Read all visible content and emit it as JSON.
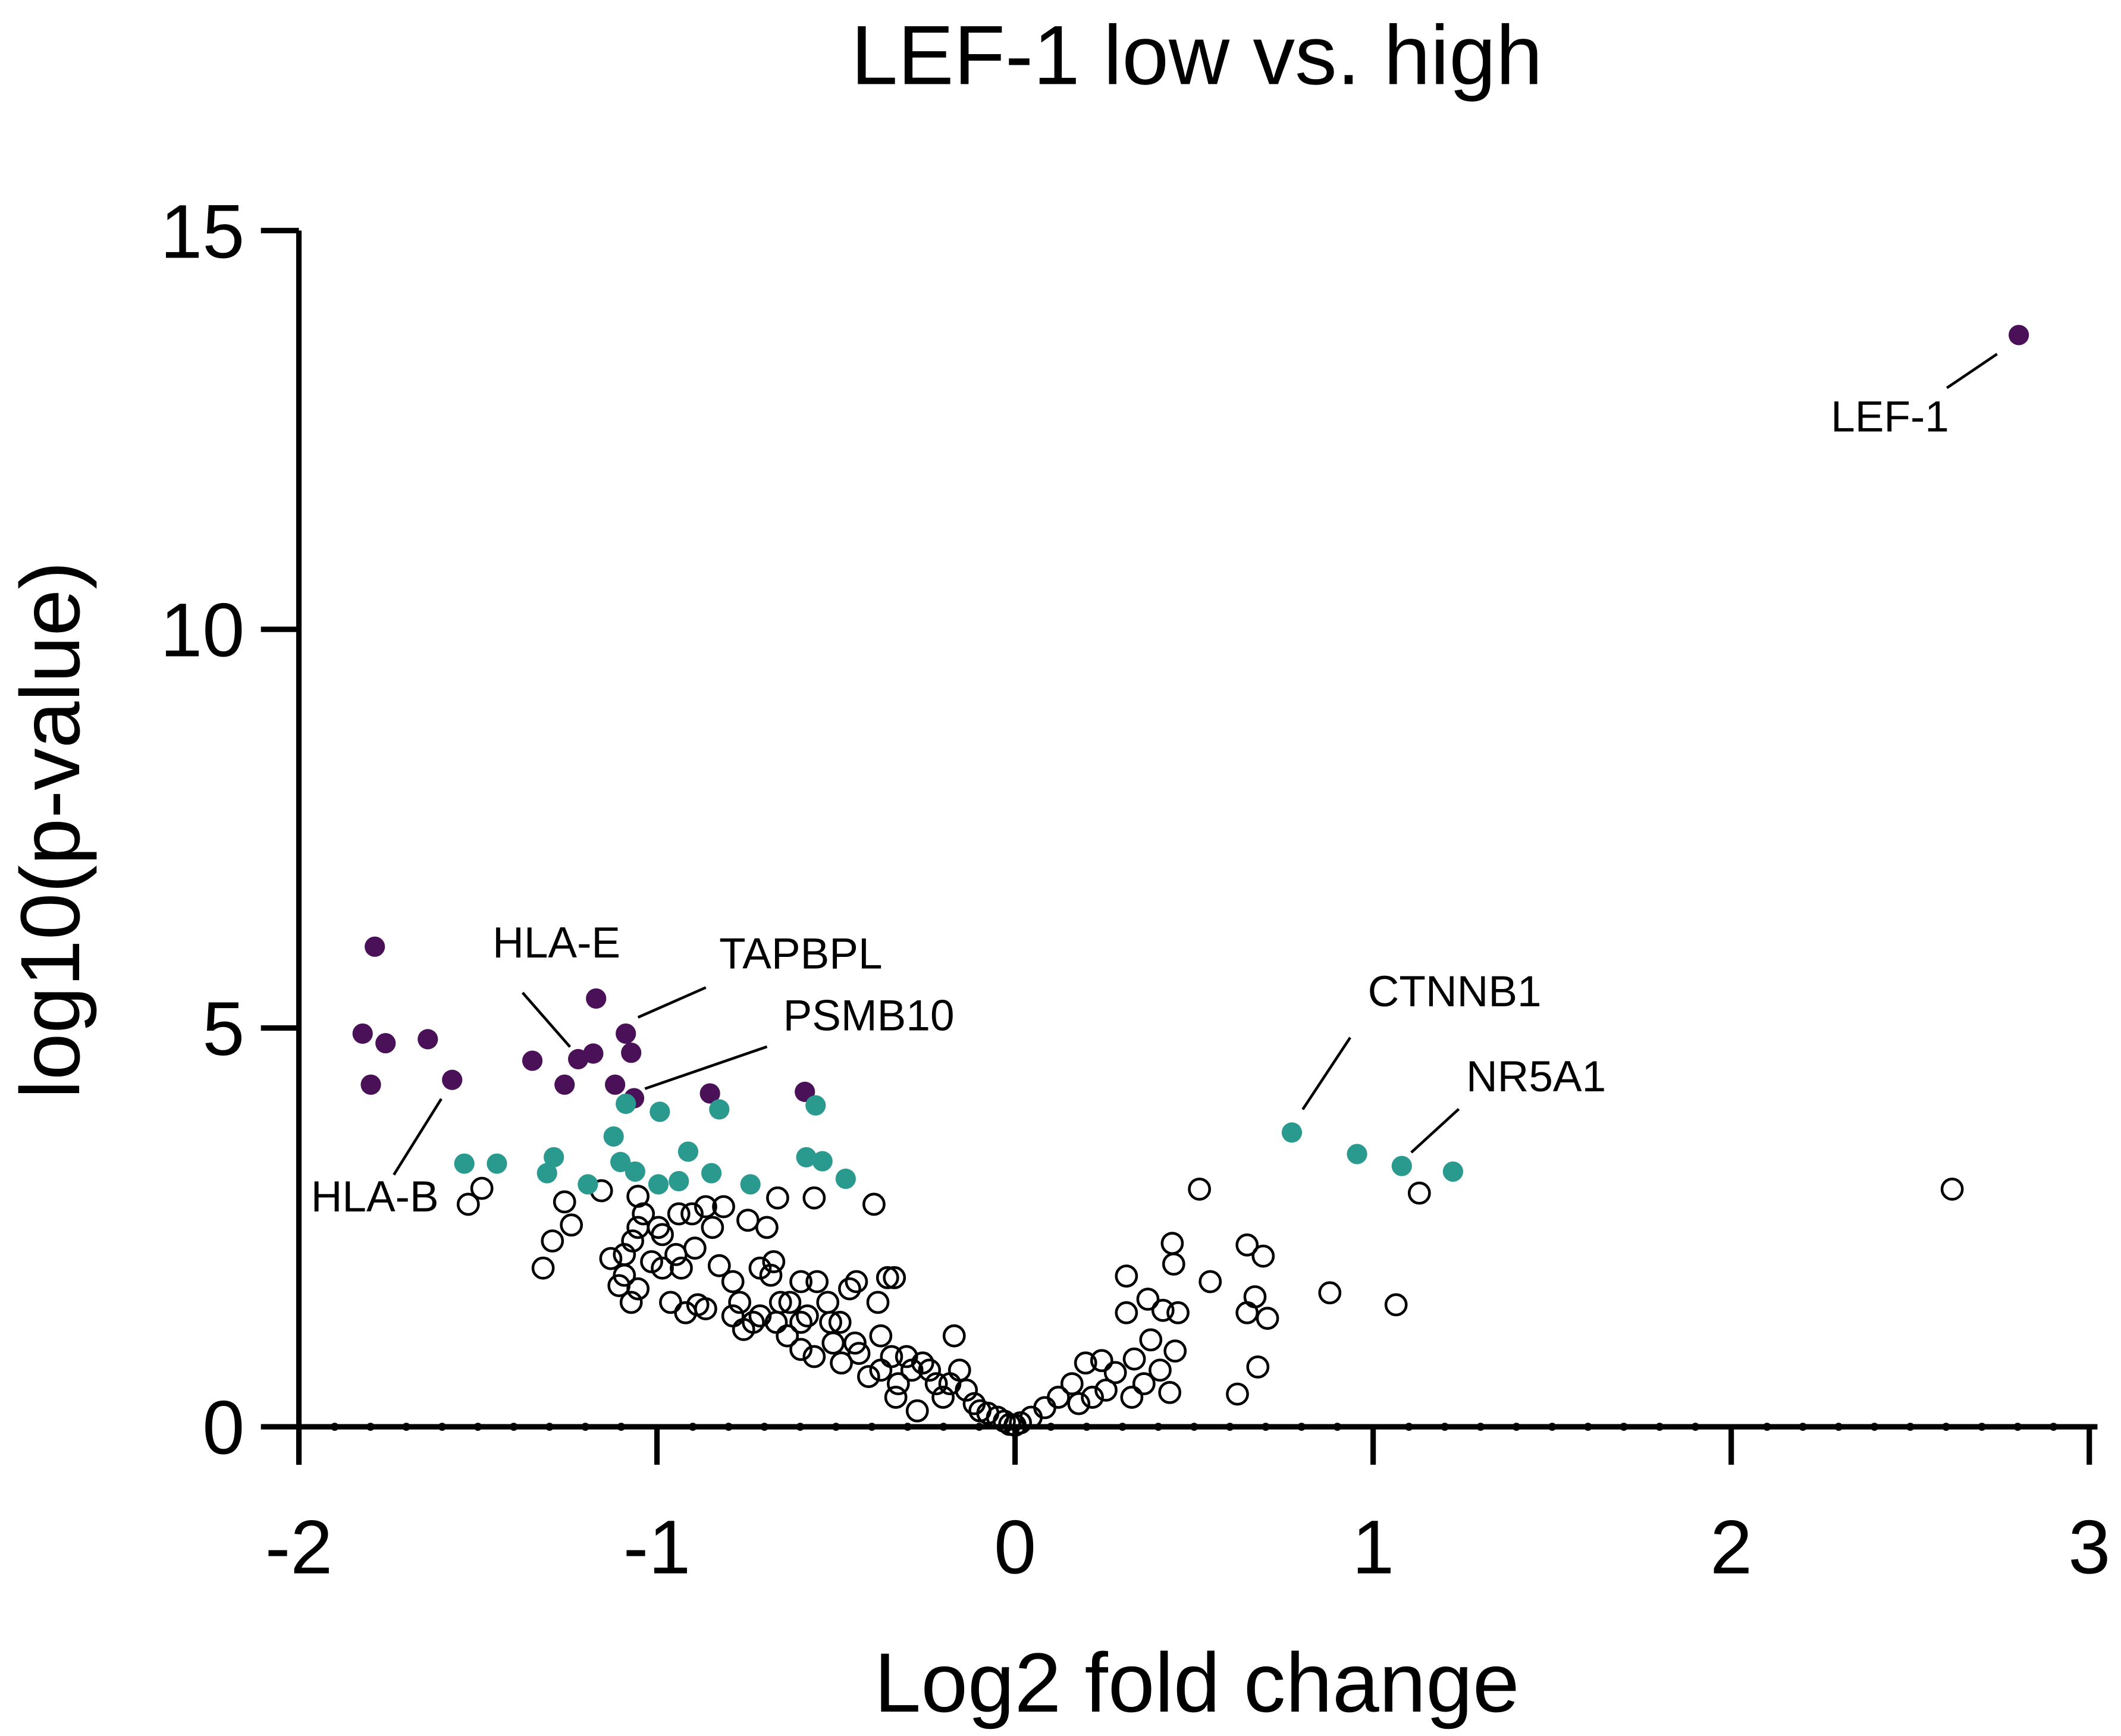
{
  "chart_data": {
    "type": "scatter",
    "title": "LEF-1 low vs. high",
    "xlabel": "Log2 fold change",
    "ylabel": "log10(p-value)",
    "xlim": [
      -2,
      3
    ],
    "ylim": [
      0,
      15
    ],
    "xticks": [
      -2,
      -1,
      0,
      1,
      2,
      3
    ],
    "yticks": [
      0,
      5,
      10,
      15
    ],
    "xminorticks": [
      -1.9,
      -1.8,
      -1.7,
      -1.6,
      -1.5,
      -1.4,
      -1.3,
      -1.2,
      -1.1,
      -0.9,
      -0.8,
      -0.7,
      -0.6,
      -0.5,
      -0.4,
      -0.3,
      -0.2,
      -0.1,
      0.1,
      0.2,
      0.3,
      0.4,
      0.5,
      0.6,
      0.7,
      0.8,
      0.9,
      1.1,
      1.2,
      1.3,
      1.4,
      1.5,
      1.6,
      1.7,
      1.8,
      1.9,
      2.1,
      2.2,
      2.3,
      2.4,
      2.5,
      2.6,
      2.7,
      2.8,
      2.9
    ],
    "series": [
      {
        "color": "#4b1158",
        "filled": true,
        "x": [
          2.803,
          -1.788,
          -1.822,
          -1.758,
          -1.799,
          -1.64,
          -1.572,
          -1.348,
          -1.258,
          -1.22,
          -1.178,
          -1.17,
          -1.087,
          -1.072,
          -1.117,
          -1.064,
          -0.852,
          -0.587
        ],
        "values": [
          13.69,
          6.02,
          4.93,
          4.81,
          4.29,
          4.86,
          4.35,
          4.59,
          4.29,
          4.61,
          4.68,
          5.37,
          4.93,
          4.69,
          4.29,
          4.12,
          4.18,
          4.2
        ],
        "point_labels": [
          "LEF-1",
          null,
          null,
          null,
          null,
          null,
          "HLA-B",
          null,
          null,
          "HLA-E",
          null,
          null,
          "TAPBPL",
          null,
          null,
          "PSMB10",
          null,
          null
        ]
      },
      {
        "color": "#2a9a8f",
        "filled": true,
        "x": [
          0.773,
          0.955,
          1.08,
          1.223,
          -1.538,
          -1.447,
          -1.307,
          -1.288,
          -1.193,
          -1.121,
          -1.102,
          -1.087,
          -1.061,
          -0.996,
          -0.992,
          -0.939,
          -0.913,
          -0.848,
          -0.826,
          -0.739,
          -0.583,
          -0.557,
          -0.538,
          -0.473
        ],
        "values": [
          3.69,
          3.42,
          3.27,
          3.2,
          3.3,
          3.3,
          3.18,
          3.38,
          3.04,
          3.64,
          3.32,
          4.05,
          3.2,
          3.04,
          3.95,
          3.08,
          3.45,
          3.18,
          3.98,
          3.04,
          3.38,
          4.03,
          3.33,
          3.11
        ],
        "point_labels": [
          "CTNNB1",
          null,
          "NR5A1",
          null,
          null,
          null,
          null,
          null,
          null,
          null,
          null,
          null,
          null,
          null,
          null,
          null,
          null,
          null,
          null,
          null,
          null,
          null,
          null,
          null
        ]
      },
      {
        "color": "#000000",
        "filled": false,
        "x": [
          2.617,
          1.129,
          1.064,
          0.879,
          0.515,
          0.439,
          0.443,
          0.545,
          0.648,
          0.693,
          0.67,
          0.648,
          0.705,
          0.678,
          0.621,
          0.311,
          0.371,
          0.311,
          0.413,
          0.455,
          0.379,
          0.447,
          0.432,
          0.326,
          0.405,
          0.197,
          0.242,
          0.159,
          0.121,
          0.083,
          0.045,
          0.015,
          0,
          0.28,
          0.254,
          0.333,
          0.36,
          0.216,
          0.178,
          -1.527,
          -1.489,
          -1.318,
          -1.292,
          -1.258,
          -1.239,
          -1.155,
          -1.129,
          -1.091,
          -1.106,
          -1.068,
          -1.053,
          -1.038,
          -1.053,
          -0.985,
          -0.985,
          -0.962,
          -0.932,
          -0.894,
          -0.886,
          -0.864,
          -0.845,
          -0.814,
          -0.826,
          -0.788,
          -0.758,
          -0.746,
          -0.712,
          -0.693,
          -0.674,
          -0.663,
          -0.655,
          -0.629,
          -0.598,
          -0.561,
          -0.553,
          -0.523,
          -0.508,
          -0.489,
          -0.462,
          -0.443,
          -0.436,
          -0.394,
          -0.383,
          -0.375,
          -0.356,
          -0.337,
          -0.345,
          -0.326,
          -0.303,
          -0.288,
          -0.273,
          -0.258,
          -0.22,
          -0.201,
          -0.17,
          -0.155,
          -0.136,
          -0.114,
          -0.098,
          -0.076,
          -0.049,
          -0.03,
          -0.015,
          -0.561,
          -0.598,
          -0.636,
          -0.731,
          -0.788,
          -0.864,
          -0.92,
          -0.485,
          -0.409,
          -0.447,
          -0.515,
          -0.667,
          -0.769,
          -0.947,
          -1.015,
          -1.072,
          -1.091,
          -1.053,
          -0.996,
          -0.939,
          -0.902,
          -0.712,
          -0.682,
          -0.598,
          -0.58,
          -0.375,
          -0.239,
          -0.182,
          -0.333
        ],
        "values": [
          2.98,
          2.93,
          1.53,
          1.68,
          2.98,
          2.3,
          2.04,
          1.82,
          2.28,
          2.14,
          1.63,
          1.43,
          1.36,
          0.75,
          0.41,
          1.89,
          1.6,
          1.43,
          1.46,
          1.43,
          1.09,
          0.95,
          0.43,
          0.37,
          0.71,
          0.8,
          0.83,
          0.54,
          0.37,
          0.24,
          0.12,
          0.05,
          0.02,
          0.68,
          0.46,
          0.85,
          0.54,
          0.37,
          0.29,
          2.79,
          2.99,
          1.99,
          2.33,
          2.82,
          2.53,
          2.96,
          2.11,
          1.9,
          1.77,
          2.33,
          2.89,
          2.67,
          1.73,
          2.41,
          1.99,
          1.56,
          1.99,
          2.24,
          1.53,
          2.76,
          2.5,
          2.76,
          2.02,
          1.82,
          1.22,
          2.59,
          1.39,
          2.5,
          2.07,
          2.87,
          1.56,
          1.56,
          1.31,
          2.87,
          1.82,
          1.56,
          1.05,
          1.31,
          1.73,
          1.82,
          0.92,
          2.79,
          1.56,
          1.14,
          1.87,
          1.87,
          0.88,
          0.54,
          0.88,
          0.71,
          0.2,
          0.8,
          0.54,
          0.37,
          1.14,
          0.71,
          0.46,
          0.29,
          0.2,
          0.17,
          0.12,
          0.07,
          0.03,
          0.88,
          0.97,
          1.14,
          1.31,
          1.39,
          1.48,
          1.43,
          0.8,
          0.63,
          1.05,
          1.31,
          1.31,
          1.56,
          2.16,
          2.07,
          1.56,
          2.16,
          2.5,
          2.5,
          2.67,
          2.67,
          1.99,
          1.9,
          1.82,
          1.39,
          0.71,
          0.71,
          0.54,
          0.37
        ]
      }
    ]
  }
}
